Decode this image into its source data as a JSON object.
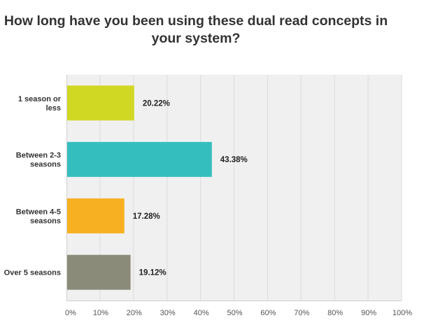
{
  "chart_data": {
    "type": "bar",
    "orientation": "horizontal",
    "title": "How long have you been using these dual read concepts in your system?",
    "categories": [
      [
        "1 season or",
        "less"
      ],
      [
        "Between 2-3",
        "seasons"
      ],
      [
        "Between 4-5",
        "seasons"
      ],
      [
        "Over 5 seasons"
      ]
    ],
    "values": [
      20.22,
      43.38,
      17.28,
      19.12
    ],
    "value_labels": [
      "20.22%",
      "43.38%",
      "17.28%",
      "19.12%"
    ],
    "colors": [
      "#d1d824",
      "#34bebe",
      "#f7b021",
      "#8b8b79"
    ],
    "xlim": [
      0,
      100
    ],
    "xticks": [
      0,
      10,
      20,
      30,
      40,
      50,
      60,
      70,
      80,
      90,
      100
    ],
    "xtick_labels": [
      "0%",
      "10%",
      "20%",
      "30%",
      "40%",
      "50%",
      "60%",
      "70%",
      "80%",
      "90%",
      "100%"
    ],
    "grid": true,
    "plot_background": "#f0f0f0"
  }
}
